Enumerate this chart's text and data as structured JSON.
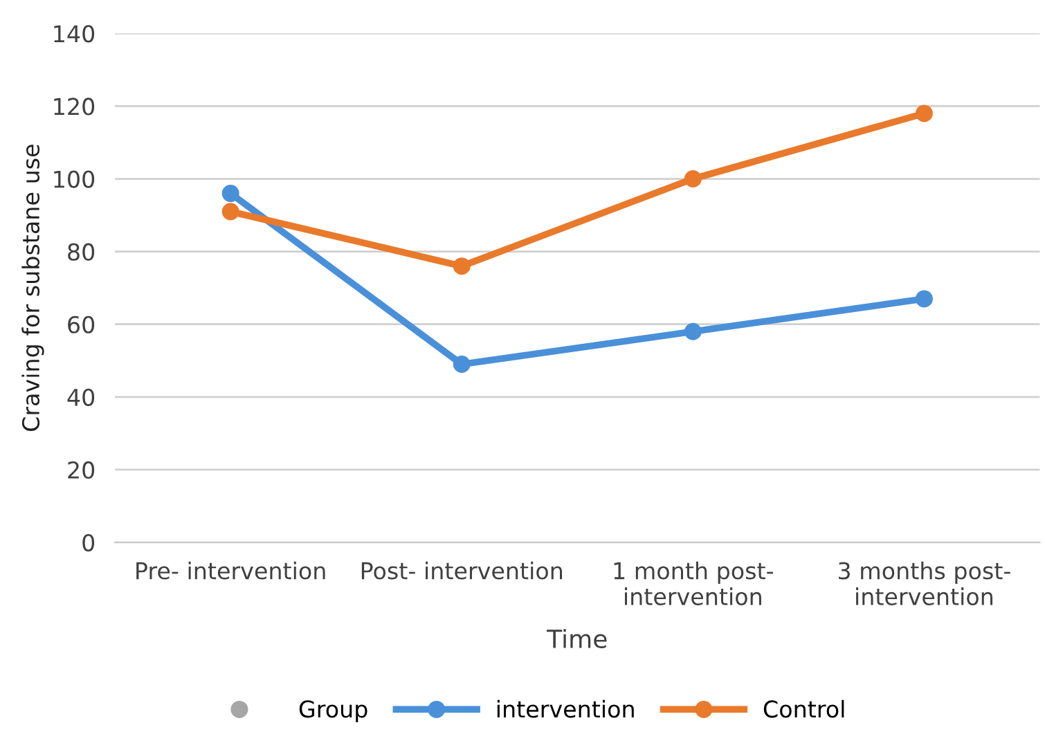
{
  "chart_data": {
    "type": "line",
    "xlabel": "Time",
    "ylabel": "Craving for substane use",
    "legend_title": "Group",
    "categories": [
      "Pre- intervention",
      "Post- intervention",
      "1 month post-\nintervention",
      "3 months post-\nintervention"
    ],
    "series": [
      {
        "name": "intervention",
        "color": "#4a90d9",
        "values": [
          96,
          49,
          58,
          67
        ]
      },
      {
        "name": "Control",
        "color": "#e97a2c",
        "values": [
          91,
          76,
          100,
          118
        ]
      }
    ],
    "ylim": [
      0,
      140
    ],
    "yticks": [
      0,
      20,
      40,
      60,
      80,
      100,
      120,
      140
    ],
    "grid": "y",
    "legend": "bottom",
    "marker": "circle",
    "line_style": "solid"
  }
}
